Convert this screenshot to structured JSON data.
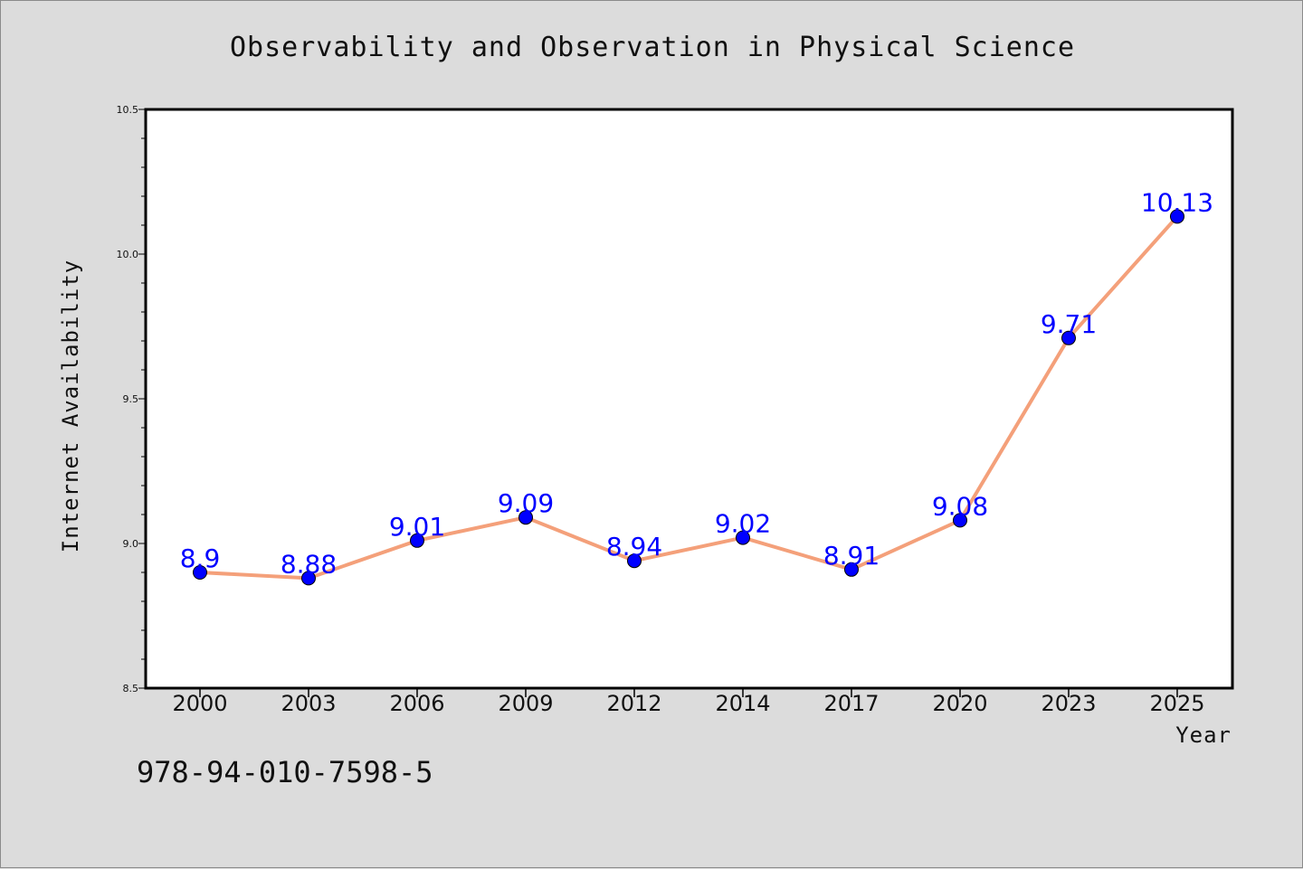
{
  "page": {
    "isbn_text": "978-94-010-7598-5"
  },
  "colors": {
    "background": "#dcdcdc",
    "plot_background": "#ffffff",
    "line": "#f4a07a",
    "marker": "#0000ff",
    "data_label": "#0000ff"
  },
  "chart_data": {
    "type": "line",
    "title": "Observability and Observation in Physical Science",
    "xlabel": "Year",
    "ylabel": "Internet Availability",
    "categories": [
      "2000",
      "2003",
      "2006",
      "2009",
      "2012",
      "2014",
      "2017",
      "2020",
      "2023",
      "2025"
    ],
    "series": [
      {
        "values": [
          8.9,
          8.88,
          9.01,
          9.09,
          8.94,
          9.02,
          8.91,
          9.08,
          9.71,
          10.13
        ],
        "data_labels": [
          "8.9",
          "8.88",
          "9.01",
          "9.09",
          "8.94",
          "9.02",
          "8.91",
          "9.08",
          "9.71",
          "10.13"
        ]
      }
    ],
    "ylim": [
      8.5,
      10.5
    ],
    "yticks": [
      "8.5",
      "9.0",
      "9.5",
      "10.0",
      "10.5"
    ],
    "grid": false,
    "legend": "none"
  }
}
